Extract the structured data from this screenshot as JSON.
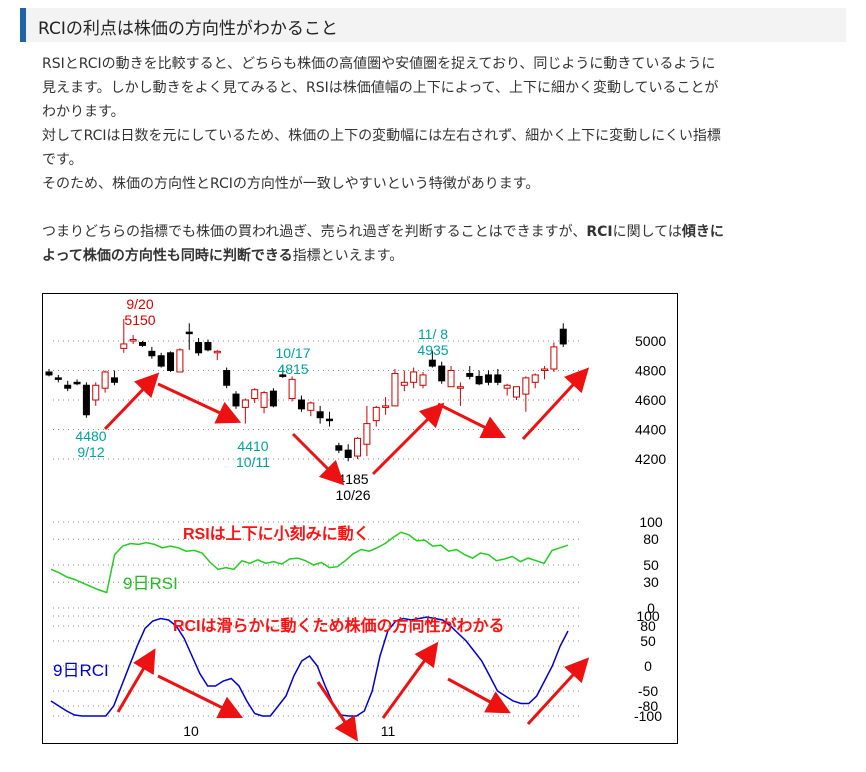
{
  "heading": "RCIの利点は株価の方向性がわかること",
  "para1": "RSIとRCIの動きを比較すると、どちらも株価の高値圏や安値圏を捉えており、同じように動きているように",
  "para2": "見えます。しかし動きをよく見てみると、RSIは株価値幅の上下によって、上下に細かく変動していることが",
  "para3": "わかります。",
  "para4": "対してRCIは日数を元にしているため、株価の上下の変動幅には左右されず、細かく上下に変動しにくい指標",
  "para5": "です。",
  "para6": "そのため、株価の方向性とRCIの方向性が一致しやすいという特徴があります。",
  "para7a": "つまりどちらの指標でも株価の買われ過ぎ、売られ過ぎを判断することはできますが、",
  "para7b": "RCI",
  "para7c": "に関しては",
  "para7d": "傾き",
  "para8a": "に",
  "para8b": "よって株価の方向性も同時に判断できる",
  "para8c": "指標といえます。",
  "chart_data": {
    "type": "candlestick",
    "price": {
      "yticks": [
        4200,
        4400,
        4600,
        4800,
        5000
      ],
      "ylim": [
        4100,
        5200
      ],
      "candles": [
        {
          "i": 0,
          "o": 4790,
          "h": 4810,
          "l": 4760,
          "c": 4770
        },
        {
          "i": 1,
          "o": 4750,
          "h": 4770,
          "l": 4720,
          "c": 4740
        },
        {
          "i": 2,
          "o": 4700,
          "h": 4730,
          "l": 4660,
          "c": 4680
        },
        {
          "i": 3,
          "o": 4720,
          "h": 4740,
          "l": 4700,
          "c": 4710
        },
        {
          "i": 4,
          "o": 4700,
          "h": 4720,
          "l": 4480,
          "c": 4500
        },
        {
          "i": 5,
          "o": 4600,
          "h": 4720,
          "l": 4560,
          "c": 4700
        },
        {
          "i": 6,
          "o": 4680,
          "h": 4800,
          "l": 4650,
          "c": 4790
        },
        {
          "i": 7,
          "o": 4750,
          "h": 4800,
          "l": 4700,
          "c": 4720
        },
        {
          "i": 8,
          "o": 4950,
          "h": 5150,
          "l": 4920,
          "c": 4980
        },
        {
          "i": 9,
          "o": 5000,
          "h": 5040,
          "l": 4980,
          "c": 5010
        },
        {
          "i": 10,
          "o": 4990,
          "h": 5000,
          "l": 4960,
          "c": 4970
        },
        {
          "i": 11,
          "o": 4930,
          "h": 4960,
          "l": 4880,
          "c": 4900
        },
        {
          "i": 12,
          "o": 4900,
          "h": 4920,
          "l": 4820,
          "c": 4830
        },
        {
          "i": 13,
          "o": 4920,
          "h": 4930,
          "l": 4790,
          "c": 4800
        },
        {
          "i": 14,
          "o": 4790,
          "h": 4950,
          "l": 4790,
          "c": 4940
        },
        {
          "i": 15,
          "o": 5060,
          "h": 5120,
          "l": 4940,
          "c": 5050
        },
        {
          "i": 16,
          "o": 4990,
          "h": 5020,
          "l": 4900,
          "c": 4920
        },
        {
          "i": 17,
          "o": 4990,
          "h": 5010,
          "l": 4930,
          "c": 4940
        },
        {
          "i": 18,
          "o": 4920,
          "h": 4940,
          "l": 4870,
          "c": 4930
        },
        {
          "i": 19,
          "o": 4800,
          "h": 4820,
          "l": 4680,
          "c": 4700
        },
        {
          "i": 20,
          "o": 4640,
          "h": 4660,
          "l": 4540,
          "c": 4560
        },
        {
          "i": 21,
          "o": 4550,
          "h": 4610,
          "l": 4440,
          "c": 4600
        },
        {
          "i": 22,
          "o": 4610,
          "h": 4680,
          "l": 4580,
          "c": 4670
        },
        {
          "i": 23,
          "o": 4550,
          "h": 4660,
          "l": 4510,
          "c": 4650
        },
        {
          "i": 24,
          "o": 4660,
          "h": 4680,
          "l": 4550,
          "c": 4560
        },
        {
          "i": 25,
          "o": 4770,
          "h": 4830,
          "l": 4750,
          "c": 4760
        },
        {
          "i": 26,
          "o": 4610,
          "h": 4760,
          "l": 4590,
          "c": 4740
        },
        {
          "i": 27,
          "o": 4600,
          "h": 4630,
          "l": 4520,
          "c": 4540
        },
        {
          "i": 28,
          "o": 4530,
          "h": 4590,
          "l": 4490,
          "c": 4580
        },
        {
          "i": 29,
          "o": 4520,
          "h": 4560,
          "l": 4440,
          "c": 4480
        },
        {
          "i": 30,
          "o": 4470,
          "h": 4520,
          "l": 4420,
          "c": 4460
        },
        {
          "i": 31,
          "o": 4290,
          "h": 4310,
          "l": 4240,
          "c": 4260
        },
        {
          "i": 32,
          "o": 4260,
          "h": 4300,
          "l": 4185,
          "c": 4210
        },
        {
          "i": 33,
          "o": 4220,
          "h": 4350,
          "l": 4200,
          "c": 4340
        },
        {
          "i": 34,
          "o": 4300,
          "h": 4560,
          "l": 4220,
          "c": 4440
        },
        {
          "i": 35,
          "o": 4460,
          "h": 4560,
          "l": 4420,
          "c": 4550
        },
        {
          "i": 36,
          "o": 4550,
          "h": 4620,
          "l": 4500,
          "c": 4560
        },
        {
          "i": 37,
          "o": 4560,
          "h": 4810,
          "l": 4560,
          "c": 4780
        },
        {
          "i": 38,
          "o": 4700,
          "h": 4800,
          "l": 4660,
          "c": 4720
        },
        {
          "i": 39,
          "o": 4720,
          "h": 4820,
          "l": 4680,
          "c": 4790
        },
        {
          "i": 40,
          "o": 4700,
          "h": 4790,
          "l": 4680,
          "c": 4770
        },
        {
          "i": 41,
          "o": 4870,
          "h": 4935,
          "l": 4820,
          "c": 4830
        },
        {
          "i": 42,
          "o": 4830,
          "h": 4860,
          "l": 4710,
          "c": 4730
        },
        {
          "i": 43,
          "o": 4690,
          "h": 4830,
          "l": 4690,
          "c": 4800
        },
        {
          "i": 44,
          "o": 4690,
          "h": 4720,
          "l": 4560,
          "c": 4690
        },
        {
          "i": 45,
          "o": 4780,
          "h": 4830,
          "l": 4740,
          "c": 4760
        },
        {
          "i": 46,
          "o": 4760,
          "h": 4800,
          "l": 4700,
          "c": 4710
        },
        {
          "i": 47,
          "o": 4770,
          "h": 4800,
          "l": 4700,
          "c": 4720
        },
        {
          "i": 48,
          "o": 4770,
          "h": 4810,
          "l": 4700,
          "c": 4720
        },
        {
          "i": 49,
          "o": 4680,
          "h": 4710,
          "l": 4630,
          "c": 4700
        },
        {
          "i": 50,
          "o": 4620,
          "h": 4690,
          "l": 4600,
          "c": 4690
        },
        {
          "i": 51,
          "o": 4640,
          "h": 4760,
          "l": 4520,
          "c": 4750
        },
        {
          "i": 52,
          "o": 4720,
          "h": 4780,
          "l": 4680,
          "c": 4770
        },
        {
          "i": 53,
          "o": 4800,
          "h": 4830,
          "l": 4740,
          "c": 4810
        },
        {
          "i": 54,
          "o": 4810,
          "h": 4990,
          "l": 4790,
          "c": 4960
        },
        {
          "i": 55,
          "o": 5080,
          "h": 5120,
          "l": 4960,
          "c": 4980
        }
      ],
      "annotations": [
        {
          "lines": [
            "9/20",
            "5150"
          ],
          "color": "#dd0000"
        },
        {
          "lines": [
            "4480",
            "9/12"
          ],
          "color": "#00a0a0"
        },
        {
          "lines": [
            "10/17",
            "4815"
          ],
          "color": "#00a0a0"
        },
        {
          "lines": [
            "4410",
            "10/11"
          ],
          "color": "#00a0a0"
        },
        {
          "lines": [
            "4185",
            "10/26"
          ],
          "color": "#000000"
        },
        {
          "lines": [
            "11/ 8",
            "4935"
          ],
          "color": "#00a0a0"
        }
      ]
    },
    "rsi": {
      "label": "9日RSI",
      "caption": "RSIは上下に小刻みに動く",
      "yticks": [
        0,
        30,
        50,
        80,
        100
      ],
      "values": [
        45,
        41,
        36,
        33,
        29,
        25,
        21,
        18,
        62,
        72,
        75,
        74,
        76,
        74,
        70,
        72,
        70,
        66,
        67,
        64,
        53,
        45,
        47,
        45,
        55,
        52,
        56,
        52,
        54,
        51,
        57,
        58,
        55,
        50,
        53,
        47,
        48,
        55,
        63,
        68,
        66,
        70,
        75,
        82,
        88,
        85,
        78,
        79,
        72,
        73,
        66,
        68,
        62,
        58,
        64,
        62,
        55,
        57,
        60,
        54,
        58,
        55,
        52,
        67,
        70,
        73
      ]
    },
    "rci": {
      "label": "9日RCI",
      "caption": "RCIは滑らかに動くため株価の方向性がわかる",
      "yticks": [
        -100,
        -80,
        -50,
        0,
        50,
        80,
        100
      ],
      "values": [
        -70,
        -80,
        -90,
        -98,
        -100,
        -100,
        -100,
        -100,
        -80,
        -40,
        0,
        40,
        75,
        90,
        95,
        92,
        80,
        55,
        20,
        -15,
        -40,
        -40,
        -30,
        -25,
        -40,
        -70,
        -95,
        -100,
        -100,
        -80,
        -60,
        -20,
        10,
        20,
        0,
        -40,
        -75,
        -98,
        -100,
        -100,
        -90,
        -50,
        20,
        70,
        90,
        95,
        92,
        95,
        98,
        95,
        92,
        80,
        65,
        50,
        30,
        10,
        -20,
        -50,
        -60,
        -70,
        -75,
        -75,
        -60,
        -30,
        0,
        40,
        70
      ]
    },
    "xticks": [
      "10",
      "11"
    ]
  }
}
